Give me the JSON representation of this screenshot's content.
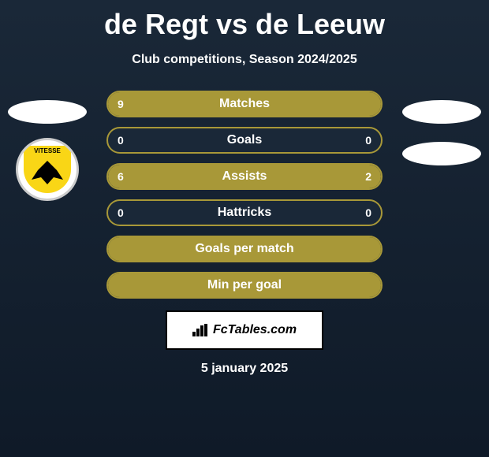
{
  "header": {
    "title": "de Regt vs de Leeuw",
    "subtitle": "Club competitions, Season 2024/2025"
  },
  "player_left": {
    "club_name": "VITESSE"
  },
  "comparison": {
    "bar_color": "#a89838",
    "border_color": "#a89838",
    "background_color": "#1a2838",
    "text_color": "#ffffff",
    "bars": [
      {
        "label": "Matches",
        "left_value": "9",
        "right_value": "",
        "left_pct": 100,
        "right_pct": 0
      },
      {
        "label": "Goals",
        "left_value": "0",
        "right_value": "0",
        "left_pct": 0,
        "right_pct": 0
      },
      {
        "label": "Assists",
        "left_value": "6",
        "right_value": "2",
        "left_pct": 75,
        "right_pct": 25
      },
      {
        "label": "Hattricks",
        "left_value": "0",
        "right_value": "0",
        "left_pct": 0,
        "right_pct": 0
      },
      {
        "label": "Goals per match",
        "left_value": "",
        "right_value": "",
        "left_pct": 100,
        "right_pct": 0
      },
      {
        "label": "Min per goal",
        "left_value": "",
        "right_value": "",
        "left_pct": 100,
        "right_pct": 0
      }
    ]
  },
  "footer": {
    "brand": "FcTables.com",
    "date": "5 january 2025"
  }
}
